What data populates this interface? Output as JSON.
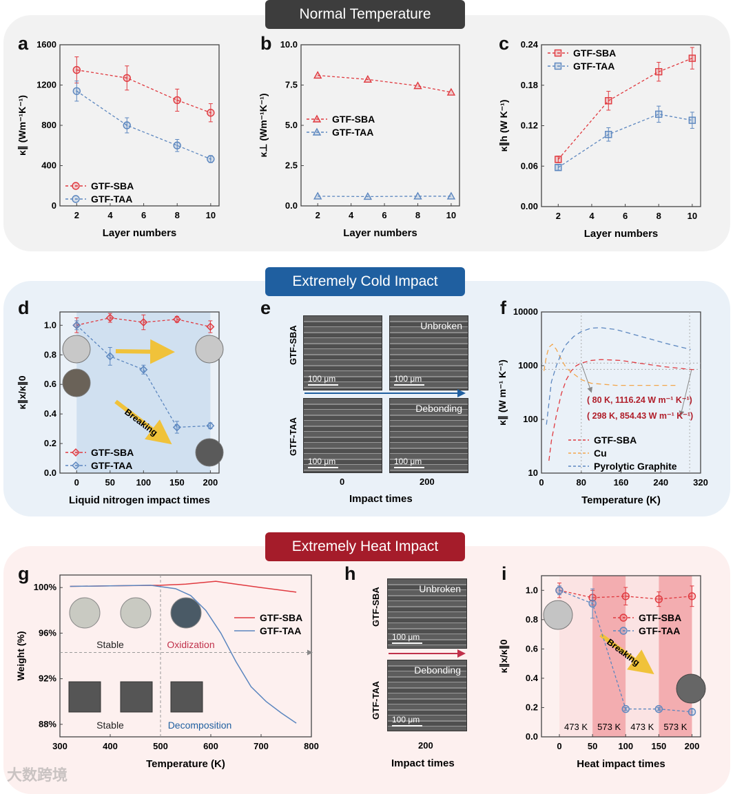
{
  "sections": {
    "normal": "Normal Temperature",
    "cold": "Extremely Cold Impact",
    "heat": "Extremely Heat Impact"
  },
  "colors": {
    "red": "#e0383e",
    "blue": "#5b86bf",
    "orange": "#f3a54a",
    "normal_bg": "#f2f2f2",
    "cold_bg": "#eaf1f8",
    "heat_bg": "#fdf0ef"
  },
  "panel_letters": [
    "a",
    "b",
    "c",
    "d",
    "e",
    "f",
    "g",
    "h",
    "i"
  ],
  "chart_data": [
    {
      "id": "a",
      "type": "line",
      "xlabel": "Layer numbers",
      "ylabel": "κ∥ (Wm⁻¹K⁻¹)",
      "xlim": [
        1,
        10.5
      ],
      "ylim": [
        0,
        1600
      ],
      "xticks": [
        2,
        4,
        6,
        8,
        10
      ],
      "yticks": [
        0,
        400,
        800,
        1200,
        1600
      ],
      "ytick_labels": [
        "0",
        "400",
        "800",
        "1200",
        "1600"
      ],
      "series": [
        {
          "name": "GTF-SBA",
          "color": "#e0383e",
          "marker": "circle",
          "x": [
            2,
            5,
            8,
            10
          ],
          "y": [
            1350,
            1270,
            1050,
            925
          ],
          "err": [
            130,
            120,
            110,
            90
          ]
        },
        {
          "name": "GTF-TAA",
          "color": "#5b86bf",
          "marker": "circle",
          "x": [
            2,
            5,
            8,
            10
          ],
          "y": [
            1140,
            800,
            600,
            465
          ],
          "err": [
            100,
            75,
            60,
            35
          ]
        }
      ]
    },
    {
      "id": "b",
      "type": "line",
      "xlabel": "Layer numbers",
      "ylabel": "κ⊥ (Wm⁻¹K⁻¹)",
      "xlim": [
        1,
        10.5
      ],
      "ylim": [
        0,
        10
      ],
      "xticks": [
        2,
        4,
        6,
        8,
        10
      ],
      "yticks": [
        0,
        2.5,
        5,
        7.5,
        10
      ],
      "ytick_labels": [
        "0.0",
        "2.5",
        "5.0",
        "7.5",
        "10.0"
      ],
      "series": [
        {
          "name": "GTF-SBA",
          "color": "#e0383e",
          "marker": "triangle",
          "x": [
            2,
            5,
            8,
            10
          ],
          "y": [
            8.1,
            7.85,
            7.45,
            7.05
          ]
        },
        {
          "name": "GTF-TAA",
          "color": "#5b86bf",
          "marker": "triangle",
          "x": [
            2,
            5,
            8,
            10
          ],
          "y": [
            0.6,
            0.58,
            0.6,
            0.6
          ]
        }
      ]
    },
    {
      "id": "c",
      "type": "line",
      "xlabel": "Layer numbers",
      "ylabel": "κ∥h (W K⁻¹)",
      "xlim": [
        1,
        10.5
      ],
      "ylim": [
        0,
        0.24
      ],
      "xticks": [
        2,
        4,
        6,
        8,
        10
      ],
      "yticks": [
        0,
        0.06,
        0.12,
        0.18,
        0.24
      ],
      "ytick_labels": [
        "0.00",
        "0.06",
        "0.12",
        "0.18",
        "0.24"
      ],
      "series": [
        {
          "name": "GTF-SBA",
          "color": "#e0383e",
          "marker": "square",
          "x": [
            2,
            5,
            8,
            10
          ],
          "y": [
            0.07,
            0.157,
            0.2,
            0.22
          ],
          "err": [
            0.005,
            0.014,
            0.014,
            0.016
          ]
        },
        {
          "name": "GTF-TAA",
          "color": "#5b86bf",
          "marker": "square",
          "x": [
            2,
            5,
            8,
            10
          ],
          "y": [
            0.058,
            0.107,
            0.137,
            0.128
          ],
          "err": [
            0.004,
            0.01,
            0.012,
            0.012
          ]
        }
      ]
    },
    {
      "id": "d",
      "type": "line",
      "xlabel": "Liquid nitrogen impact times",
      "ylabel": "κ∥x/κ∥0",
      "xlim": [
        -25,
        213
      ],
      "ylim": [
        0,
        1.09
      ],
      "xticks": [
        0,
        50,
        100,
        150,
        200
      ],
      "yticks": [
        0,
        0.2,
        0.4,
        0.6,
        0.8,
        1.0
      ],
      "ytick_labels": [
        "0.0",
        "0.2",
        "0.4",
        "0.6",
        "0.8",
        "1.0"
      ],
      "annotations": [
        "Breaking"
      ],
      "series": [
        {
          "name": "GTF-SBA",
          "color": "#e0383e",
          "marker": "diamond",
          "x": [
            0,
            50,
            100,
            150,
            200
          ],
          "y": [
            1.0,
            1.05,
            1.02,
            1.04,
            0.99
          ],
          "err": [
            0.05,
            0.03,
            0.05,
            0.02,
            0.04
          ]
        },
        {
          "name": "GTF-TAA",
          "color": "#5b86bf",
          "marker": "diamond",
          "x": [
            0,
            50,
            100,
            150,
            200
          ],
          "y": [
            1.0,
            0.79,
            0.7,
            0.31,
            0.32
          ],
          "err": [
            0.03,
            0.06,
            0.03,
            0.04,
            0.02
          ]
        }
      ]
    },
    {
      "id": "f",
      "type": "line",
      "xlabel": "Temperature (K)",
      "ylabel": "κ∥ (W m⁻¹ K⁻¹)",
      "xlim": [
        0,
        320
      ],
      "ylim": [
        10,
        10000
      ],
      "yscale": "log",
      "xticks": [
        0,
        80,
        160,
        240,
        320
      ],
      "yticks": [
        10,
        100,
        1000,
        10000
      ],
      "ytick_labels": [
        "10",
        "100",
        "1000",
        "10000"
      ],
      "annotations": [
        "( 80 K, 1116.24 W m⁻¹ K⁻¹)",
        "( 298 K, 854.43 W m⁻¹ K⁻¹)"
      ],
      "series": [
        {
          "name": "GTF-SBA",
          "color": "#e0383e",
          "x": [
            15,
            20,
            30,
            40,
            50,
            60,
            70,
            80,
            100,
            120,
            160,
            200,
            250,
            298,
            310
          ],
          "y": [
            17,
            40,
            120,
            300,
            550,
            800,
            1000,
            1116,
            1250,
            1300,
            1250,
            1100,
            950,
            854,
            840
          ]
        },
        {
          "name": "Cu",
          "color": "#f3a54a",
          "x": [
            5,
            10,
            15,
            22,
            30,
            40,
            50,
            65,
            80,
            100,
            150,
            200,
            270
          ],
          "y": [
            800,
            1500,
            2200,
            2500,
            2000,
            1300,
            900,
            700,
            550,
            470,
            430,
            430,
            430
          ]
        },
        {
          "name": "Pyrolytic Graphite",
          "color": "#5b86bf",
          "x": [
            10,
            15,
            20,
            30,
            40,
            50,
            65,
            80,
            100,
            120,
            150,
            200,
            250,
            300
          ],
          "y": [
            80,
            200,
            500,
            1000,
            1700,
            2500,
            3500,
            4300,
            5000,
            5100,
            4700,
            3500,
            2600,
            2000
          ]
        }
      ]
    },
    {
      "id": "g",
      "type": "line",
      "xlabel": "Temperature (K)",
      "ylabel": "Weight (%)",
      "xlim": [
        300,
        800
      ],
      "ylim": [
        86.9,
        101.1
      ],
      "xticks": [
        300,
        400,
        500,
        600,
        700,
        800
      ],
      "yticks": [
        88,
        92,
        96,
        100
      ],
      "ytick_labels": [
        "88%",
        "92%",
        "96%",
        "100%"
      ],
      "annotations": [
        "Stable",
        "Oxidization",
        "Stable",
        "Decomposition"
      ],
      "series": [
        {
          "name": "GTF-SBA",
          "color": "#e0383e",
          "x": [
            320,
            400,
            500,
            550,
            610,
            650,
            700,
            770
          ],
          "y": [
            100.1,
            100.15,
            100.2,
            100.3,
            100.55,
            100.3,
            100.0,
            99.6
          ]
        },
        {
          "name": "GTF-TAA",
          "color": "#5b86bf",
          "x": [
            320,
            400,
            480,
            530,
            560,
            590,
            620,
            650,
            680,
            710,
            740,
            770
          ],
          "y": [
            100.1,
            100.15,
            100.2,
            99.9,
            99.3,
            98,
            96,
            93.5,
            91.3,
            90,
            89,
            88.1
          ]
        }
      ]
    },
    {
      "id": "i",
      "type": "line",
      "xlabel": "Heat impact times",
      "ylabel": "κ∥x/κ∥0",
      "xlim": [
        -27,
        213
      ],
      "ylim": [
        0,
        1.1
      ],
      "xticks": [
        0,
        50,
        100,
        150,
        200
      ],
      "yticks": [
        0,
        0.2,
        0.4,
        0.6,
        0.8,
        1.0
      ],
      "ytick_labels": [
        "0.0",
        "0.2",
        "0.4",
        "0.6",
        "0.8",
        "1.0"
      ],
      "annotations": [
        "Breaking"
      ],
      "bands": [
        "473 K",
        "573 K",
        "473 K",
        "573 K"
      ],
      "series": [
        {
          "name": "GTF-SBA",
          "color": "#e0383e",
          "marker": "circle",
          "x": [
            0,
            50,
            100,
            150,
            200
          ],
          "y": [
            1.0,
            0.95,
            0.96,
            0.94,
            0.96
          ],
          "err": [
            0.05,
            0.05,
            0.06,
            0.05,
            0.07
          ]
        },
        {
          "name": "GTF-TAA",
          "color": "#5b86bf",
          "marker": "circle",
          "x": [
            0,
            50,
            100,
            150,
            200
          ],
          "y": [
            1.0,
            0.91,
            0.19,
            0.19,
            0.17
          ],
          "err": [
            0.03,
            0.1,
            0.01,
            0.01,
            0.02
          ]
        }
      ]
    }
  ],
  "panel_e": {
    "rows": [
      "GTF-SBA",
      "GTF-TAA"
    ],
    "labels": [
      "Unbroken",
      "Debonding"
    ],
    "scale": "100 μm",
    "xticks": [
      "0",
      "200"
    ],
    "xlabel": "Impact times"
  },
  "panel_h": {
    "rows": [
      "GTF-SBA",
      "GTF-TAA"
    ],
    "labels": [
      "Unbroken",
      "Debonding"
    ],
    "scale": "100 μm",
    "xticks": [
      "200"
    ],
    "xlabel": "Impact times"
  },
  "watermark": "大数跨境"
}
